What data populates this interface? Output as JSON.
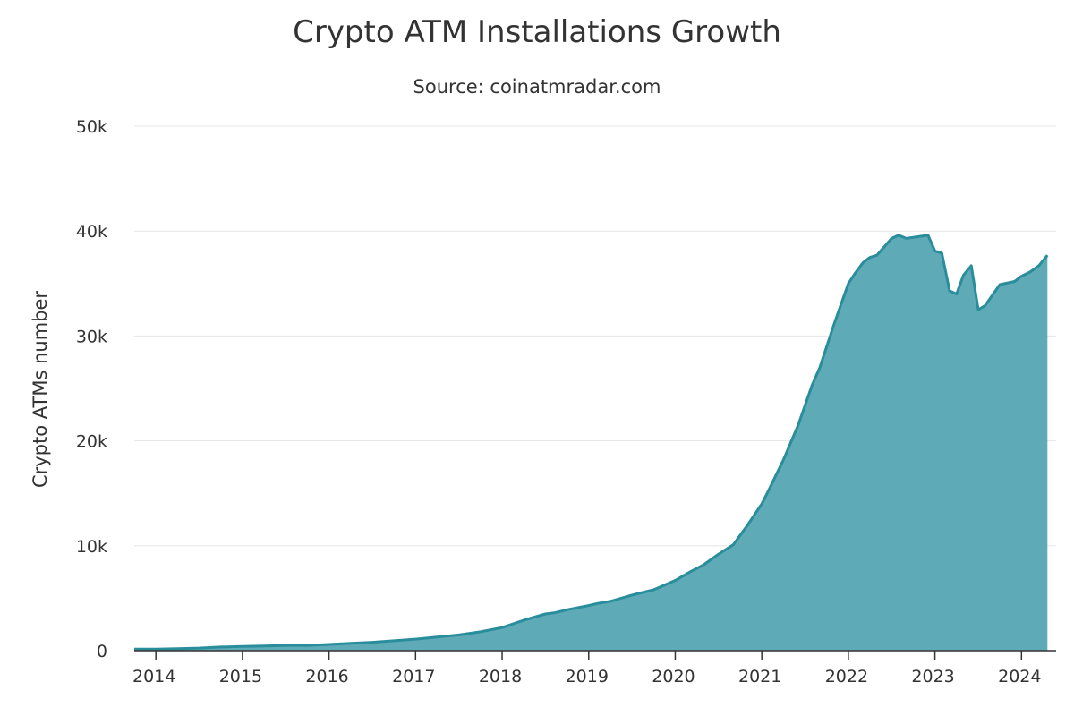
{
  "chart_data": {
    "type": "area",
    "title": "Crypto ATM Installations Growth",
    "subtitle": "Source: coinatmradar.com",
    "xlabel": "",
    "ylabel": "Crypto ATMs number",
    "xlim": [
      2013.75,
      2024.4
    ],
    "ylim": [
      0,
      50000
    ],
    "x_ticks": [
      2014,
      2015,
      2016,
      2017,
      2018,
      2019,
      2020,
      2021,
      2022,
      2023,
      2024
    ],
    "x_tick_labels": [
      "2014",
      "2015",
      "2016",
      "2017",
      "2018",
      "2019",
      "2020",
      "2021",
      "2022",
      "2023",
      "2024"
    ],
    "y_ticks": [
      0,
      10000,
      20000,
      30000,
      40000,
      50000
    ],
    "y_tick_labels": [
      "0",
      "10k",
      "20k",
      "30k",
      "40k",
      "50k"
    ],
    "grid": true,
    "legend": "none",
    "colors": {
      "line": "#2a8d9c",
      "fill": "#5eaab7",
      "grid": "#e6e6e6",
      "axis": "#333333"
    },
    "series": [
      {
        "x": [
          2013.75,
          2014.0,
          2014.25,
          2014.5,
          2014.75,
          2015.0,
          2015.25,
          2015.5,
          2015.75,
          2016.0,
          2016.25,
          2016.5,
          2016.75,
          2017.0,
          2017.25,
          2017.5,
          2017.75,
          2018.0,
          2018.25,
          2018.5,
          2018.6,
          2018.75,
          2019.0,
          2019.1,
          2019.25,
          2019.5,
          2019.6,
          2019.75,
          2020.0,
          2020.17,
          2020.33,
          2020.5,
          2020.67,
          2020.83,
          2021.0,
          2021.08,
          2021.25,
          2021.42,
          2021.58,
          2021.67,
          2021.83,
          2022.0,
          2022.08,
          2022.17,
          2022.25,
          2022.33,
          2022.5,
          2022.58,
          2022.67,
          2022.83,
          2022.92,
          2023.0,
          2023.08,
          2023.17,
          2023.25,
          2023.33,
          2023.42,
          2023.5,
          2023.58,
          2023.75,
          2023.92,
          2024.0,
          2024.1,
          2024.2,
          2024.3
        ],
        "values": [
          150,
          150,
          200,
          250,
          350,
          400,
          450,
          500,
          500,
          600,
          700,
          800,
          950,
          1100,
          1300,
          1500,
          1800,
          2200,
          2900,
          3500,
          3600,
          3900,
          4300,
          4500,
          4700,
          5300,
          5500,
          5800,
          6700,
          7500,
          8200,
          9200,
          10100,
          11900,
          14000,
          15300,
          18200,
          21500,
          25300,
          27000,
          31000,
          35000,
          36000,
          37000,
          37500,
          37700,
          39300,
          39600,
          39300,
          39500,
          39600,
          38100,
          37900,
          34300,
          34000,
          35800,
          36700,
          32500,
          32900,
          34900,
          35200,
          35700,
          36100,
          36700,
          37700
        ]
      }
    ]
  }
}
